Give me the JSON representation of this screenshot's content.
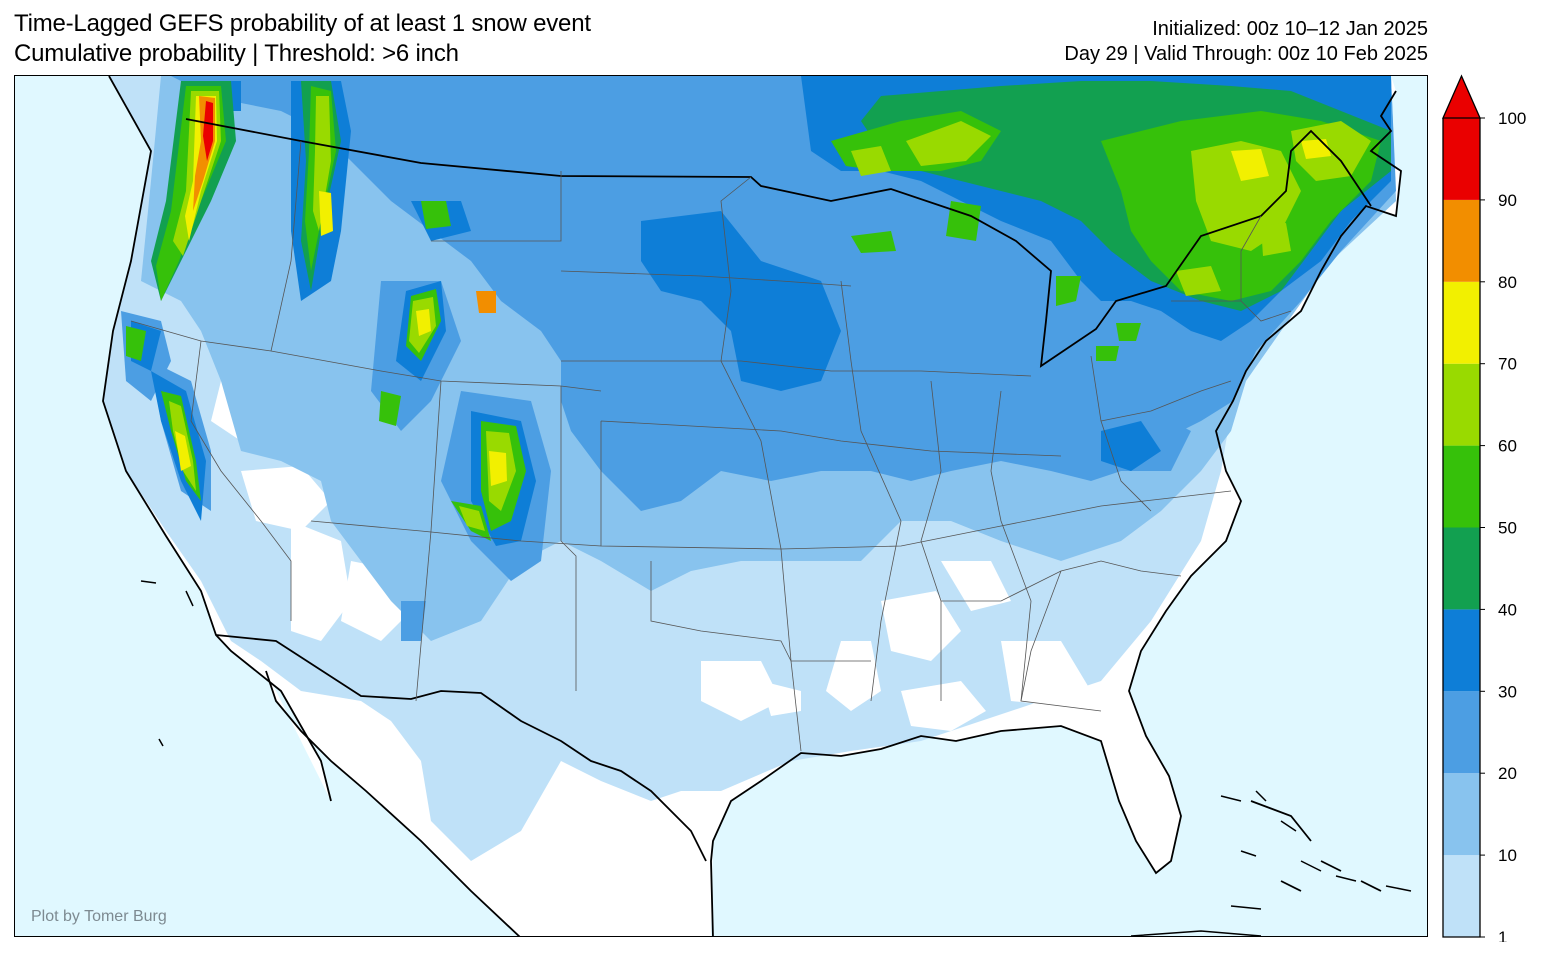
{
  "header": {
    "title_line1": "Time-Lagged GEFS probability of at least 1 snow event",
    "title_line2": "Cumulative probability | Threshold: >6 inch",
    "initialized": "Initialized: 00z 10–12 Jan 2025",
    "valid": "Day 29 | Valid Through: 00z 10 Feb 2025"
  },
  "credit": "Plot by Tomer Burg",
  "colorbar": {
    "ticks": [
      "1",
      "10",
      "20",
      "30",
      "40",
      "50",
      "60",
      "70",
      "80",
      "90",
      "100"
    ],
    "colors": [
      "#bfe1f8",
      "#88c3ee",
      "#4c9ee3",
      "#0e7ed7",
      "#12a050",
      "#36c10a",
      "#99da00",
      "#f2f000",
      "#f28e00",
      "#ea0000"
    ],
    "extend": "max"
  },
  "map": {
    "ocean_color": "#e0f8ff",
    "land_color": "#ffffff",
    "region": "Contiguous United States and southern Canada"
  }
}
